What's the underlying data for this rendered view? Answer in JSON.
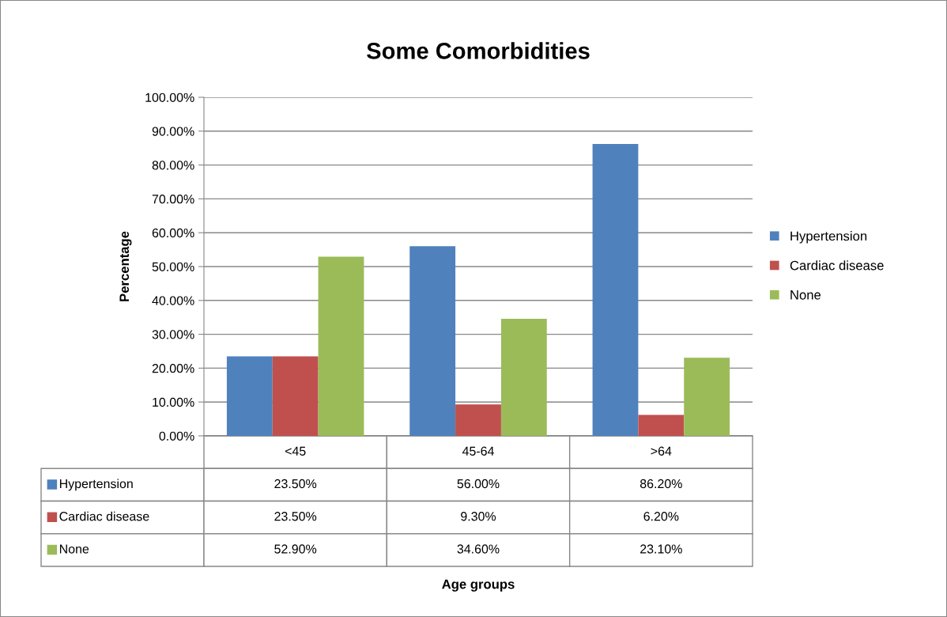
{
  "chart_data": {
    "type": "bar",
    "title": "Some Comorbidities",
    "annotations": [
      "Age groups"
    ],
    "ylabel": "Percentage",
    "categories": [
      "<45",
      "45-64",
      ">64"
    ],
    "series": [
      {
        "name": "Hypertension",
        "color": "#4f81bd",
        "values": [
          23.5,
          56.0,
          86.2
        ],
        "value_labels": [
          "23.50%",
          "56.00%",
          "86.20%"
        ]
      },
      {
        "name": "Cardiac disease",
        "color": "#c0504d",
        "values": [
          23.5,
          9.3,
          6.2
        ],
        "value_labels": [
          "23.50%",
          "9.30%",
          "6.20%"
        ]
      },
      {
        "name": "None",
        "color": "#9bbb59",
        "values": [
          52.9,
          34.6,
          23.1
        ],
        "value_labels": [
          "52.90%",
          "34.60%",
          "23.10%"
        ]
      }
    ],
    "ylim": [
      0,
      100
    ],
    "yticks": [
      {
        "value": 0,
        "label": "0.00%"
      },
      {
        "value": 10,
        "label": "10.00%"
      },
      {
        "value": 20,
        "label": "20.00%"
      },
      {
        "value": 30,
        "label": "30.00%"
      },
      {
        "value": 40,
        "label": "40.00%"
      },
      {
        "value": 50,
        "label": "50.00%"
      },
      {
        "value": 60,
        "label": "60.00%"
      },
      {
        "value": 70,
        "label": "70.00%"
      },
      {
        "value": 80,
        "label": "80.00%"
      },
      {
        "value": 90,
        "label": "90.00%"
      },
      {
        "value": 100,
        "label": "100.00%"
      }
    ],
    "grid": "y",
    "legend": "right"
  }
}
